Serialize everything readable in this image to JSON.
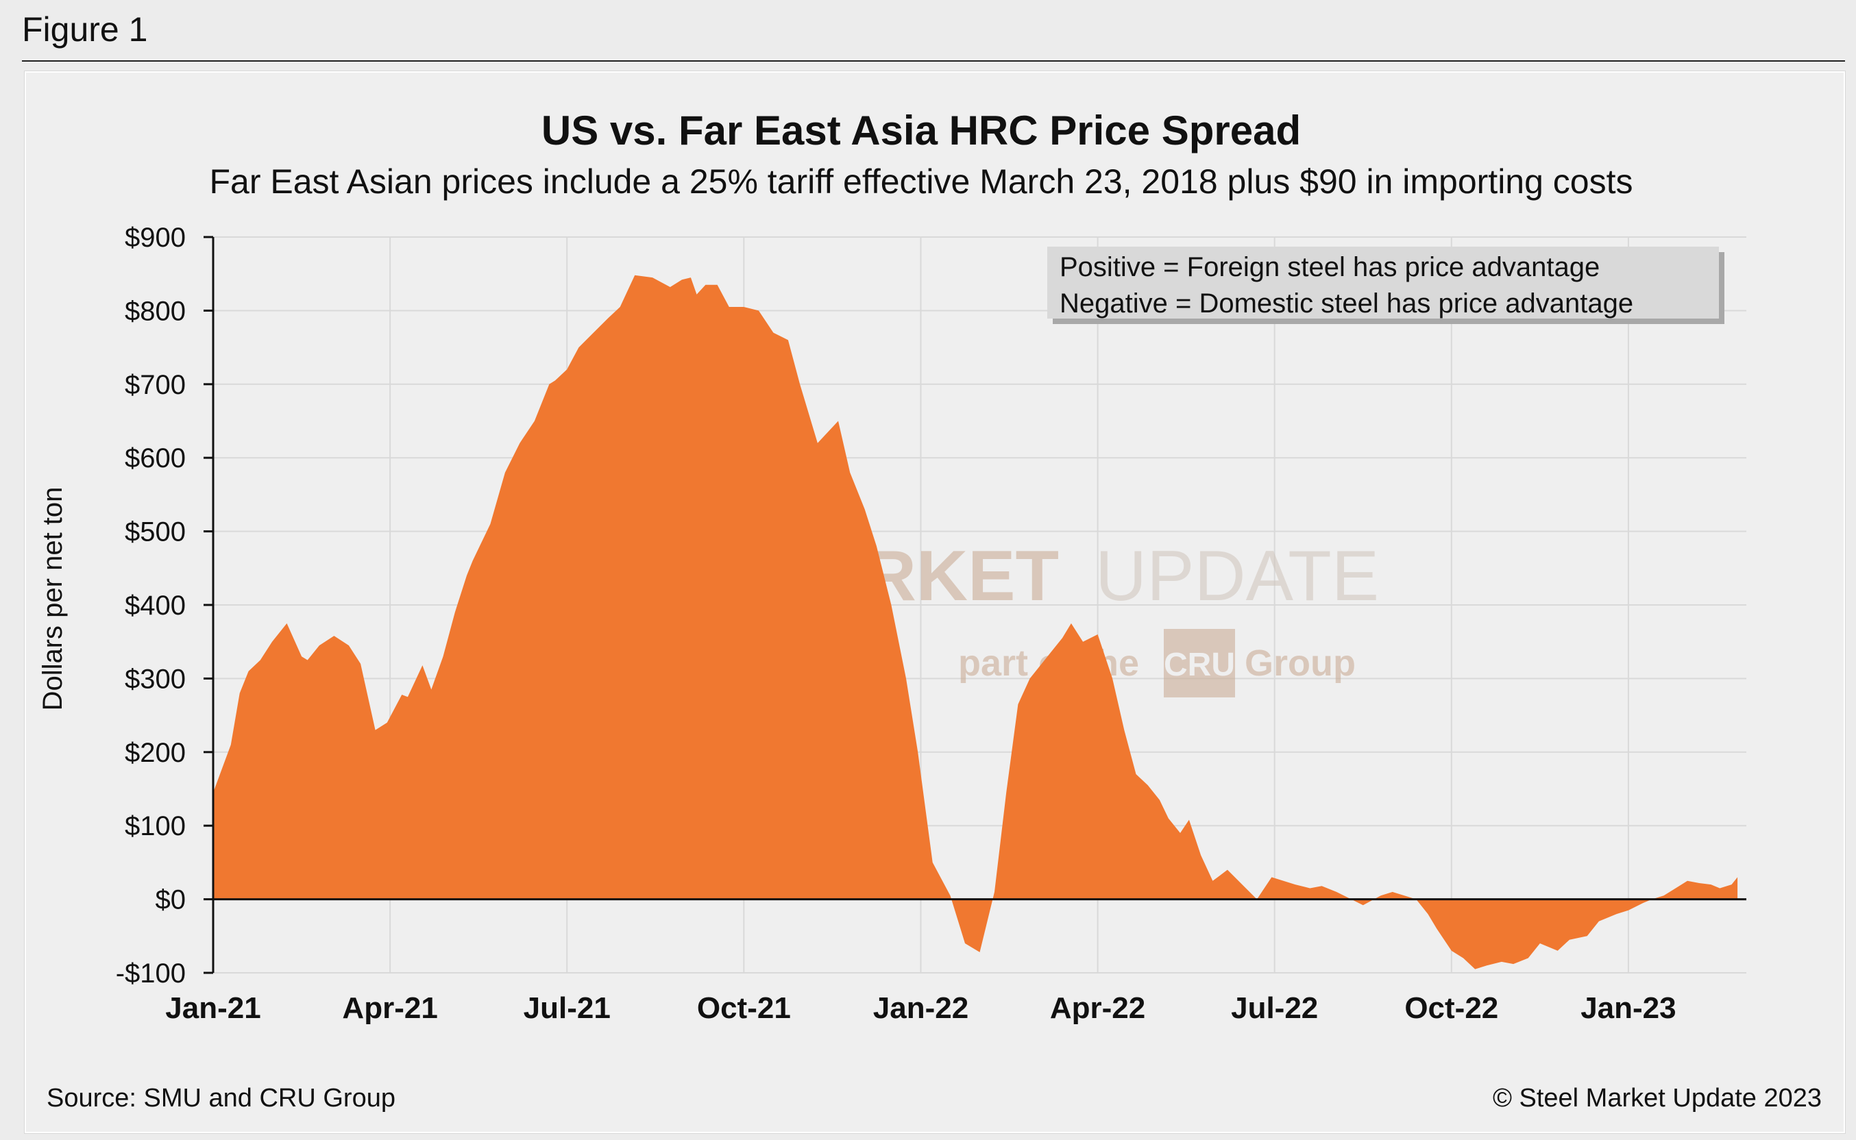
{
  "figure_label": "Figure 1",
  "source": "Source: SMU and CRU Group",
  "copyright": "© Steel Market Update 2023",
  "watermark": {
    "line1_bold": "STEEL MARKET",
    "line1_light": "UPDATE",
    "line2_prefix": "part of the",
    "line2_badge": "CRU",
    "line2_suffix": "Group"
  },
  "colors": {
    "fill": "#F07830",
    "grid": "#d9d9d9",
    "axis": "#111111"
  },
  "chart_data": {
    "type": "area",
    "title": "US vs. Far East Asia HRC Price Spread",
    "subtitle": "Far East Asian prices include a 25% tariff effective March 23, 2018 plus $90 in importing costs",
    "ylabel": "Dollars per net ton",
    "xlabel": "",
    "ylim": [
      -100,
      900
    ],
    "yticks": [
      -100,
      0,
      100,
      200,
      300,
      400,
      500,
      600,
      700,
      800,
      900
    ],
    "ytick_labels": [
      "-$100",
      "$0",
      "$100",
      "$200",
      "$300",
      "$400",
      "$500",
      "$600",
      "$700",
      "$800",
      "$900"
    ],
    "xlim": [
      0,
      26
    ],
    "xticks": [
      0,
      3,
      6,
      9,
      12,
      15,
      18,
      21,
      24
    ],
    "xtick_labels": [
      "Jan-21",
      "Apr-21",
      "Jul-21",
      "Oct-21",
      "Jan-22",
      "Apr-22",
      "Jul-22",
      "Oct-22",
      "Jan-23"
    ],
    "x_unit": "months since Jan-21",
    "grid": true,
    "legend": {
      "position": "top-right",
      "lines": [
        "Positive = Foreign steel has price advantage",
        "Negative = Domestic steel has price advantage"
      ]
    },
    "x": [
      0,
      0.3,
      0.45,
      0.6,
      0.8,
      1.0,
      1.25,
      1.5,
      1.6,
      1.8,
      2.05,
      2.3,
      2.5,
      2.75,
      2.95,
      3.2,
      3.3,
      3.55,
      3.7,
      3.9,
      4.1,
      4.3,
      4.4,
      4.7,
      4.95,
      5.2,
      5.45,
      5.7,
      5.8,
      6.0,
      6.2,
      6.45,
      6.7,
      6.9,
      7.15,
      7.45,
      7.75,
      7.95,
      8.1,
      8.2,
      8.35,
      8.55,
      8.75,
      9.0,
      9.25,
      9.5,
      9.75,
      9.95,
      10.25,
      10.6,
      10.8,
      11.05,
      11.25,
      11.5,
      11.75,
      11.95,
      12.2,
      12.5,
      12.75,
      13.0,
      13.25,
      13.45,
      13.65,
      13.85,
      14.05,
      14.25,
      14.4,
      14.55,
      14.75,
      15.0,
      15.25,
      15.45,
      15.65,
      15.85,
      16.05,
      16.2,
      16.4,
      16.55,
      16.75,
      16.95,
      17.2,
      17.45,
      17.7,
      17.95,
      18.15,
      18.35,
      18.6,
      18.8,
      19.05,
      19.3,
      19.5,
      19.8,
      20.0,
      20.2,
      20.4,
      20.6,
      20.75,
      21.0,
      21.2,
      21.4,
      21.6,
      21.85,
      22.05,
      22.3,
      22.5,
      22.8,
      23.0,
      23.3,
      23.5,
      23.8,
      24.0,
      24.25,
      24.4,
      24.6,
      24.8,
      25.0,
      25.2,
      25.4,
      25.55,
      25.75,
      25.85
    ],
    "y": [
      145,
      210,
      280,
      310,
      325,
      350,
      375,
      330,
      325,
      345,
      358,
      345,
      320,
      230,
      240,
      278,
      275,
      318,
      285,
      330,
      390,
      440,
      460,
      510,
      580,
      620,
      650,
      700,
      705,
      720,
      750,
      770,
      790,
      805,
      848,
      845,
      832,
      842,
      845,
      822,
      835,
      835,
      805,
      805,
      800,
      770,
      760,
      700,
      620,
      650,
      580,
      530,
      480,
      400,
      300,
      200,
      50,
      5,
      -60,
      -72,
      10,
      145,
      265,
      300,
      320,
      340,
      355,
      375,
      350,
      360,
      300,
      230,
      170,
      155,
      135,
      110,
      90,
      108,
      60,
      25,
      40,
      20,
      0,
      30,
      25,
      20,
      15,
      18,
      10,
      0,
      -8,
      5,
      10,
      5,
      0,
      -20,
      -40,
      -70,
      -80,
      -95,
      -90,
      -85,
      -88,
      -80,
      -60,
      -70,
      -55,
      -50,
      -30,
      -20,
      -15,
      -5,
      0,
      5,
      15,
      25,
      22,
      20,
      15,
      20,
      30
    ]
  }
}
